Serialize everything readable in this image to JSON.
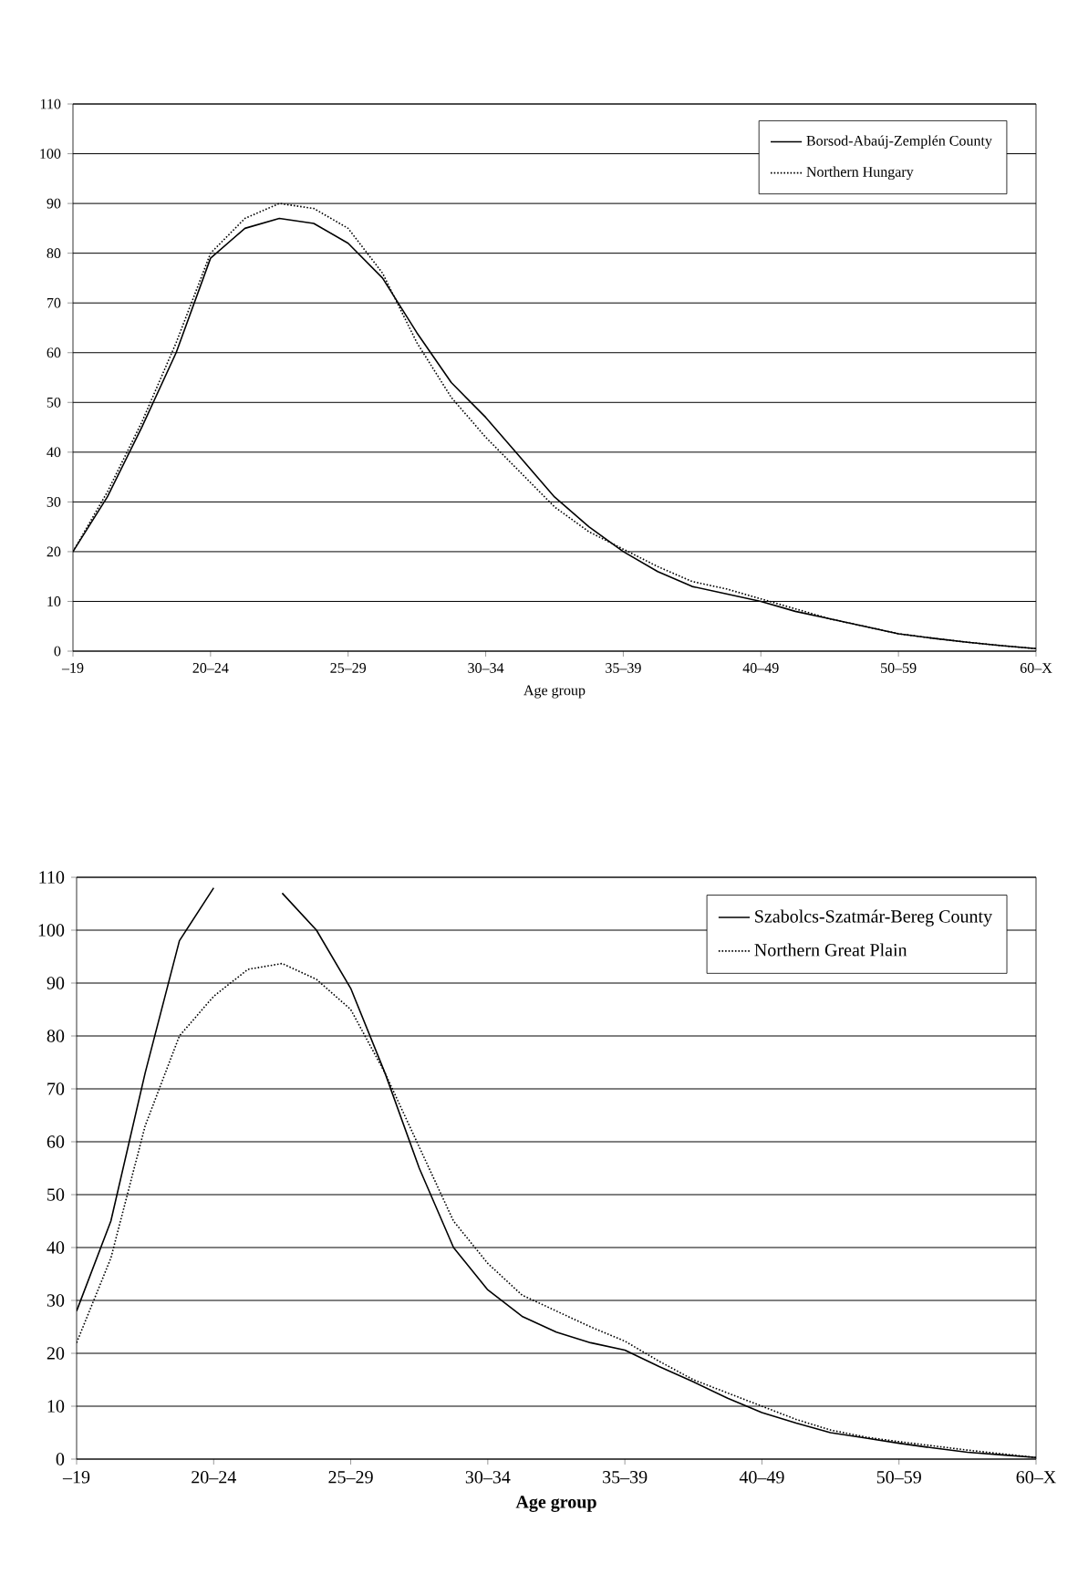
{
  "chart_data": [
    {
      "type": "line",
      "xlabel": "Age group",
      "categories": [
        "–19",
        null,
        null,
        null,
        "20–24",
        null,
        null,
        null,
        "25–29",
        null,
        null,
        null,
        "30–34",
        null,
        null,
        null,
        "35–39",
        null,
        null,
        null,
        "40–49",
        null,
        null,
        null,
        "50–59",
        null,
        null,
        null,
        "60–X"
      ],
      "ylim": [
        0,
        110
      ],
      "yticks": [
        0,
        10,
        20,
        30,
        40,
        50,
        60,
        70,
        80,
        90,
        100,
        110
      ],
      "grid": "y",
      "legend": "top right",
      "series": [
        {
          "name": "Borsod-Abaúj-Zemplén County",
          "color": "#000000",
          "line_style": "solid",
          "values": [
            20,
            31,
            45,
            60,
            79,
            85,
            87,
            86,
            82,
            75,
            64,
            54,
            47,
            39,
            31,
            25,
            20,
            16,
            13,
            11.5,
            10,
            8,
            6.5,
            5,
            3.5,
            2.6,
            1.8,
            1.1,
            0.5
          ]
        },
        {
          "name": "Northern Hungary",
          "color": "#000000",
          "line_style": "dotted",
          "values": [
            20,
            32,
            46,
            62,
            80,
            87,
            90,
            89,
            85,
            76,
            62,
            51,
            43,
            36,
            29,
            24,
            20.5,
            17,
            14,
            12.5,
            10.5,
            8.5,
            6.5,
            5,
            3.5,
            2.6,
            1.8,
            1.1,
            0.5
          ]
        }
      ]
    },
    {
      "type": "line",
      "xlabel": "Age group",
      "categories": [
        "–19",
        null,
        null,
        null,
        "20–24",
        null,
        null,
        null,
        "25–29",
        null,
        null,
        null,
        "30–34",
        null,
        null,
        null,
        "35–39",
        null,
        null,
        null,
        "40–49",
        null,
        null,
        null,
        "50–59",
        null,
        null,
        null,
        "60–X"
      ],
      "ylim": [
        0,
        110
      ],
      "yticks": [
        0,
        10,
        20,
        30,
        40,
        50,
        60,
        70,
        80,
        90,
        100,
        110
      ],
      "grid": "y",
      "legend": "top right",
      "series": [
        {
          "name": "Szabolcs-Szatmár-Bereg County",
          "color": "#000000",
          "line_style": "solid",
          "values": [
            28,
            45,
            73,
            98,
            108,
            null,
            107,
            100,
            89,
            73,
            55,
            40,
            32,
            27,
            24,
            22,
            20.6,
            17.5,
            14.6,
            11.5,
            8.8,
            6.8,
            5,
            4,
            3,
            2.1,
            1.3,
            0.8,
            0.3
          ]
        },
        {
          "name": "Northern Great Plain",
          "color": "#000000",
          "line_style": "dotted",
          "values": [
            22,
            38,
            63,
            80,
            87.5,
            92.6,
            93.7,
            90.7,
            85,
            73,
            59,
            45,
            37,
            31,
            28,
            25,
            22.3,
            18.5,
            15,
            12.5,
            10,
            7.5,
            5.5,
            4.2,
            3.3,
            2.5,
            1.7,
            1,
            0.3
          ]
        }
      ]
    }
  ]
}
